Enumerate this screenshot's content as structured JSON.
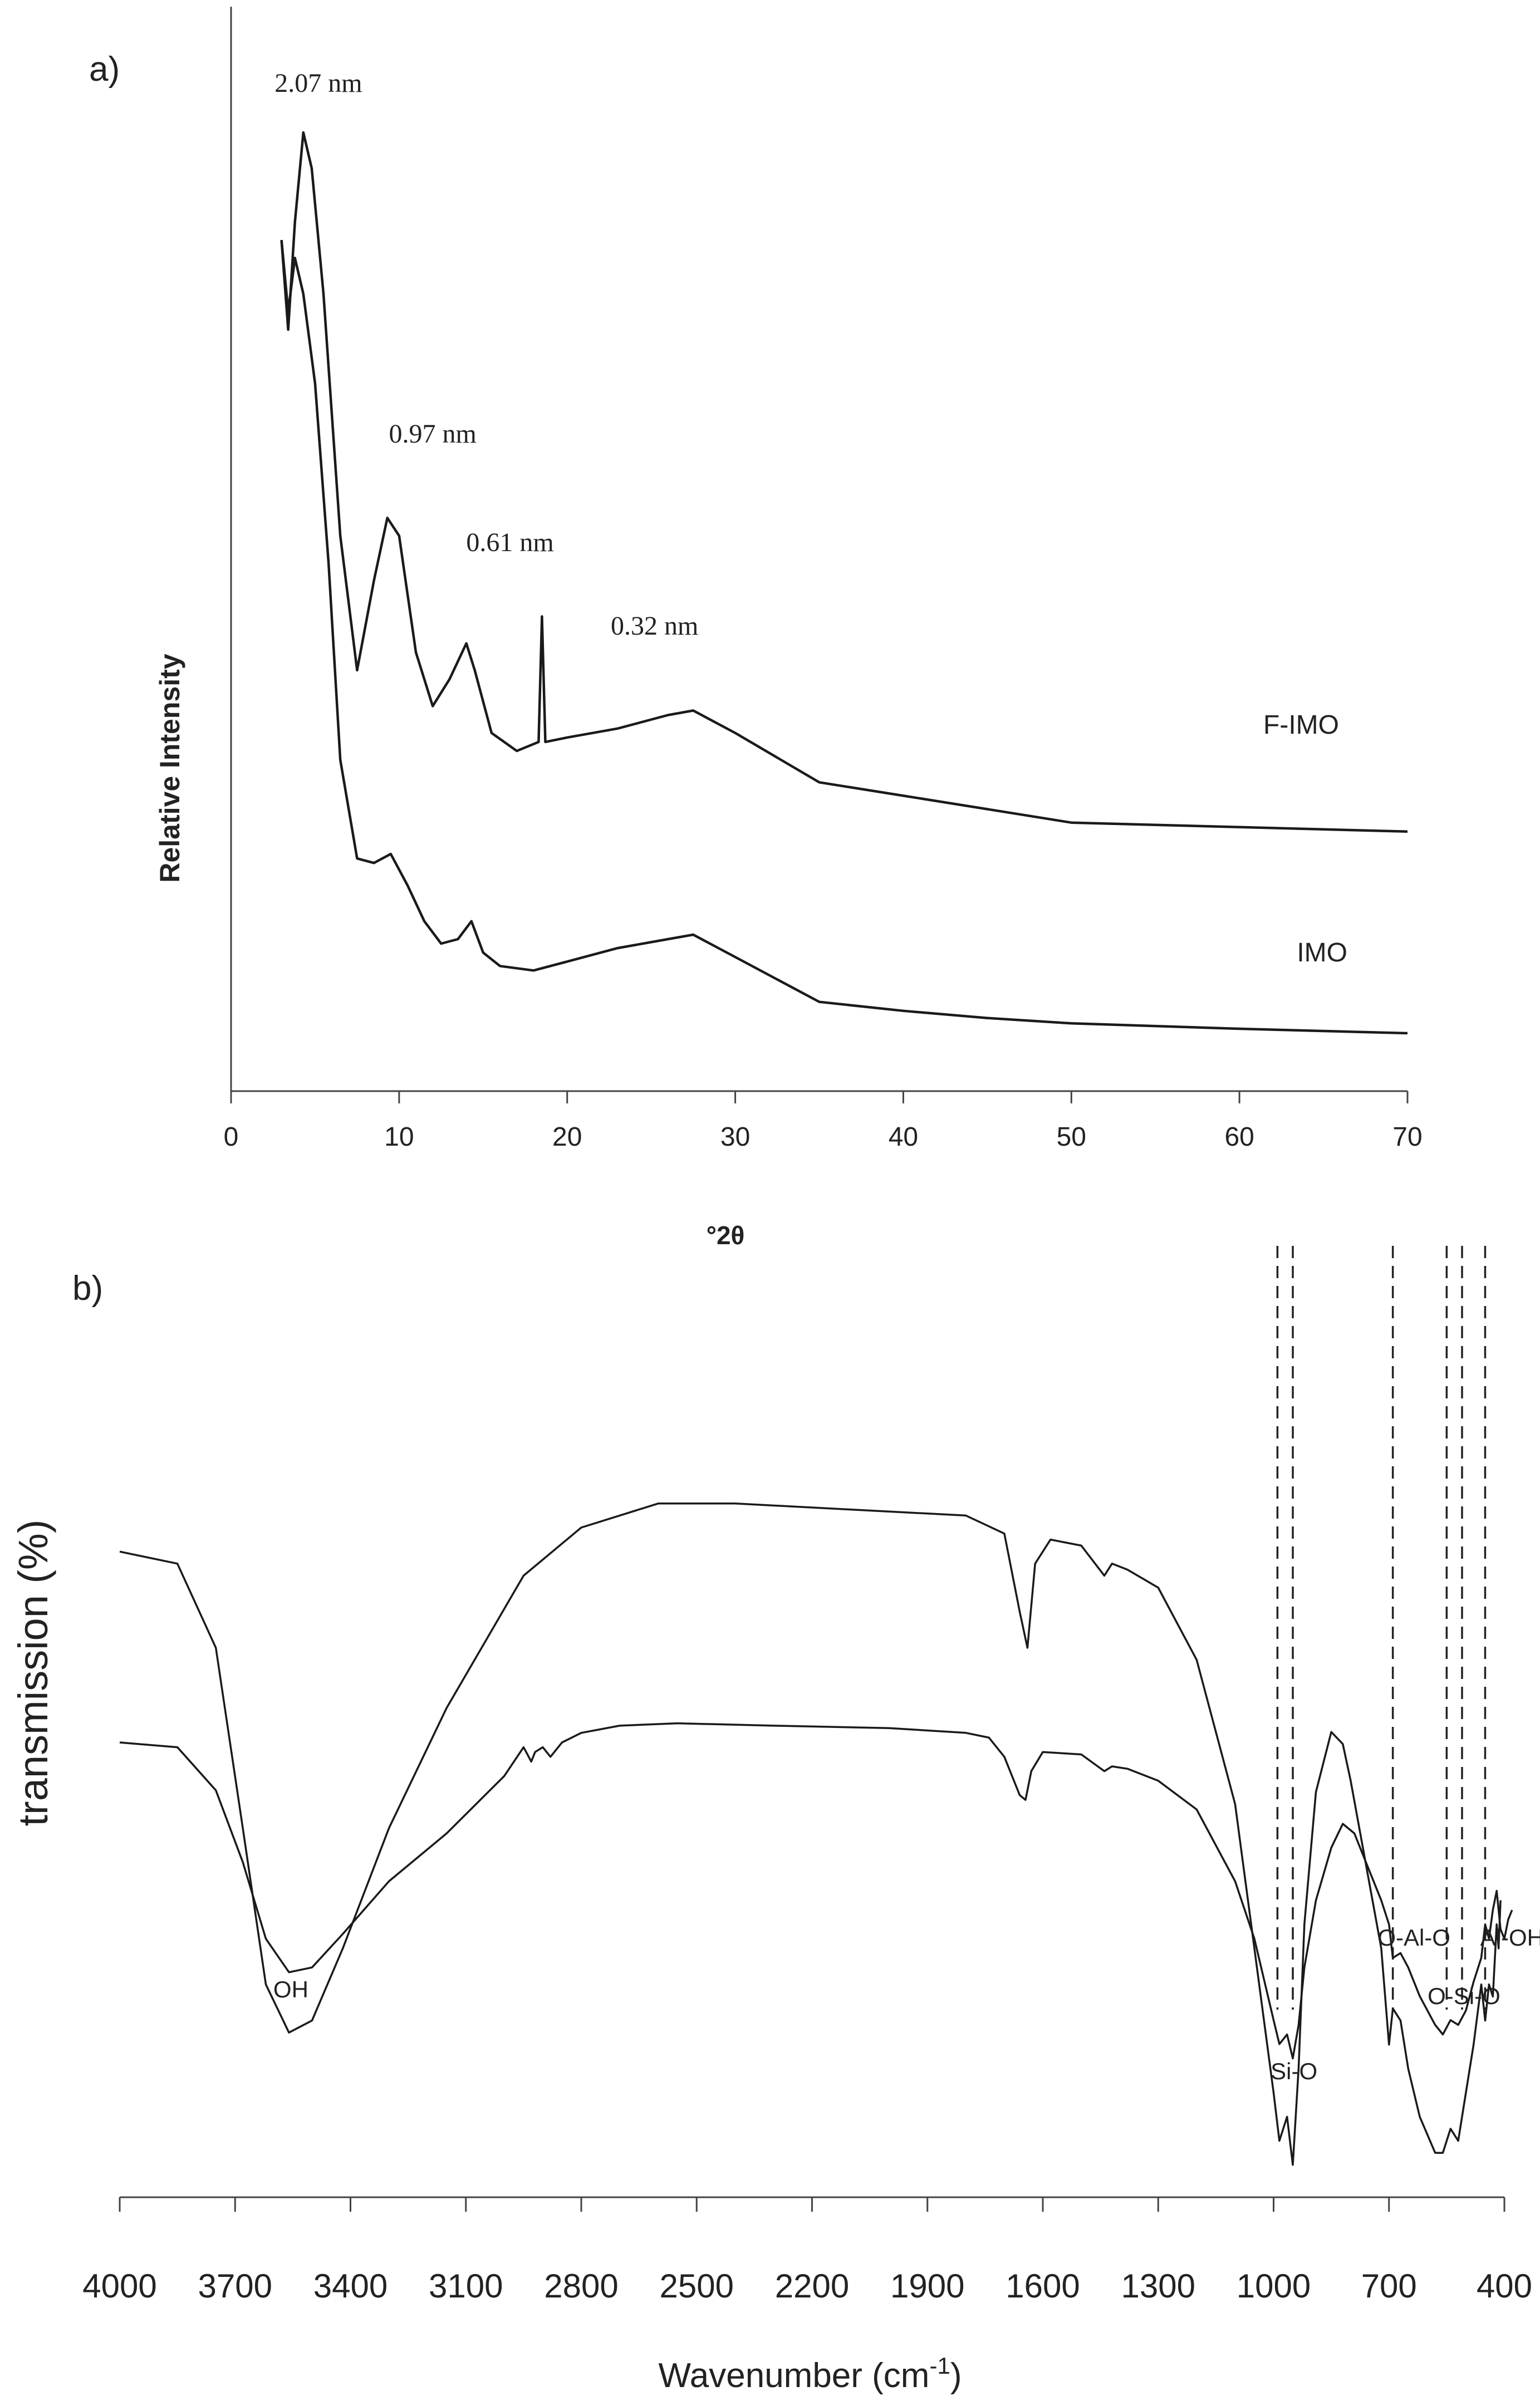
{
  "panel_a": {
    "label": "a)",
    "ylabel": "Relative Intensity",
    "xlabel": "°2θ",
    "annotations": [
      {
        "text": "2.07 nm",
        "x": 5.2
      },
      {
        "text": "0.97 nm",
        "x": 12.0
      },
      {
        "text": "0.61 nm",
        "x": 16.6
      },
      {
        "text": "0.32 nm",
        "x": 25.2
      }
    ]
  },
  "panel_b": {
    "label": "b)",
    "ylabel": "transmission (%)",
    "xlabel": "Wavenumber (cm",
    "xlabel_sup": "-1",
    "xlabel_end": ")",
    "band_labels": [
      {
        "text": "OH",
        "x": 3555
      },
      {
        "text": "Si-O",
        "x": 947
      },
      {
        "text": "O-Al-O",
        "x": 635
      },
      {
        "text": "O-Si-O",
        "x": 505
      },
      {
        "text": "Al-OH",
        "x": 380
      }
    ],
    "dashed_lines": [
      990,
      950,
      690,
      550,
      510,
      450
    ]
  },
  "chart_data": [
    {
      "type": "line",
      "title": "",
      "xlabel": "°2θ",
      "ylabel": "Relative Intensity",
      "xlim": [
        0,
        70
      ],
      "xticks": [
        0,
        10,
        20,
        30,
        40,
        50,
        60,
        70
      ],
      "y_ticks_shown": false,
      "series": [
        {
          "name": "F-IMO",
          "x": [
            3.0,
            3.4,
            3.8,
            4.3,
            4.8,
            5.5,
            6.5,
            7.5,
            8.5,
            9.3,
            10.0,
            11.0,
            12.0,
            13.0,
            14.0,
            14.5,
            15.5,
            17.0,
            18.3,
            18.5,
            18.7,
            20.0,
            23.0,
            26.0,
            27.5,
            30.0,
            35.0,
            40.0,
            45.0,
            50.0,
            60.0,
            70.0
          ],
          "y": [
            88,
            78,
            90,
            100,
            96,
            82,
            55,
            40,
            50,
            57,
            55,
            42,
            36,
            39,
            43,
            40,
            33,
            31,
            32,
            46,
            32,
            32.5,
            33.5,
            35,
            35.5,
            33,
            27.5,
            26,
            24.5,
            23,
            22.5,
            22
          ]
        },
        {
          "name": "IMO",
          "x": [
            3.0,
            3.4,
            3.8,
            4.3,
            5.0,
            5.8,
            6.5,
            7.5,
            8.5,
            9.5,
            10.5,
            11.5,
            12.5,
            13.5,
            14.3,
            15.0,
            16.0,
            18.0,
            20.0,
            23.0,
            26.0,
            27.5,
            30.0,
            35.0,
            40.0,
            45.0,
            50.0,
            60.0,
            70.0
          ],
          "y": [
            88,
            80,
            86,
            82,
            72,
            52,
            30,
            19,
            18.5,
            19.5,
            16,
            12,
            9.5,
            10,
            12,
            8.5,
            7,
            6.5,
            7.5,
            9,
            10,
            10.5,
            8,
            3,
            2,
            1.2,
            0.6,
            0,
            -0.5
          ]
        }
      ]
    },
    {
      "type": "line",
      "title": "",
      "xlabel": "Wavenumber (cm-1)",
      "ylabel": "transmission (%)",
      "xlim": [
        4000,
        400
      ],
      "x_reversed": true,
      "xticks": [
        4000,
        3700,
        3400,
        3100,
        2800,
        2500,
        2200,
        1900,
        1600,
        1300,
        1000,
        700,
        400
      ],
      "y_ticks_shown": false,
      "series": [
        {
          "x": [
            4000,
            3850,
            3750,
            3680,
            3620,
            3560,
            3500,
            3420,
            3300,
            3150,
            2950,
            2800,
            2600,
            2400,
            2100,
            1800,
            1700,
            1660,
            1640,
            1620,
            1580,
            1500,
            1440,
            1420,
            1380,
            1300,
            1200,
            1100,
            1050,
            1000,
            985,
            965,
            950,
            935,
            920,
            890,
            850,
            820,
            800,
            760,
            720,
            700,
            690,
            670,
            650,
            620,
            580,
            560,
            540,
            520,
            500,
            480,
            460,
            450,
            440,
            430,
            420,
            415,
            410
          ],
          "y": [
            83,
            82,
            75,
            60,
            47,
            43,
            44,
            50,
            60,
            70,
            81,
            85,
            87,
            87,
            86.5,
            86,
            84.5,
            78,
            75,
            82,
            84,
            83.5,
            81,
            82,
            81.5,
            80,
            74,
            62,
            50,
            38,
            34,
            36,
            32,
            40,
            52,
            63,
            68,
            67,
            64,
            57,
            50,
            42,
            45,
            44,
            40,
            36,
            33,
            33,
            35,
            34,
            38,
            42,
            47,
            44,
            47,
            46,
            52,
            50,
            54
          ]
        },
        {
          "x": [
            4000,
            3850,
            3750,
            3680,
            3620,
            3560,
            3500,
            3420,
            3300,
            3150,
            3000,
            2950,
            2930,
            2920,
            2900,
            2880,
            2860,
            2850,
            2800,
            2700,
            2550,
            2300,
            2000,
            1800,
            1740,
            1700,
            1660,
            1645,
            1630,
            1600,
            1500,
            1440,
            1420,
            1380,
            1300,
            1200,
            1100,
            1050,
            1000,
            985,
            965,
            950,
            935,
            920,
            890,
            850,
            820,
            790,
            760,
            720,
            700,
            690,
            670,
            650,
            620,
            580,
            560,
            540,
            520,
            500,
            480,
            460,
            450,
            440,
            430,
            420,
            410,
            400,
            390,
            380
          ],
          "y": [
            55,
            54,
            45,
            30,
            14,
            7,
            8,
            15,
            26,
            36,
            48,
            54,
            51,
            53,
            54,
            52,
            54,
            55,
            57,
            58.5,
            59,
            58.5,
            58,
            57,
            56,
            52,
            44,
            43,
            49,
            53,
            52.5,
            49,
            50,
            49.5,
            47,
            41,
            26,
            14,
            -3,
            -8,
            -6,
            -11,
            -4,
            8,
            22,
            33,
            38,
            36,
            30,
            22,
            17,
            10,
            11,
            8,
            2,
            -4,
            -6,
            -3,
            -4,
            -1,
            5,
            10,
            17,
            14,
            20,
            24,
            16,
            14,
            18,
            20
          ]
        }
      ]
    }
  ]
}
